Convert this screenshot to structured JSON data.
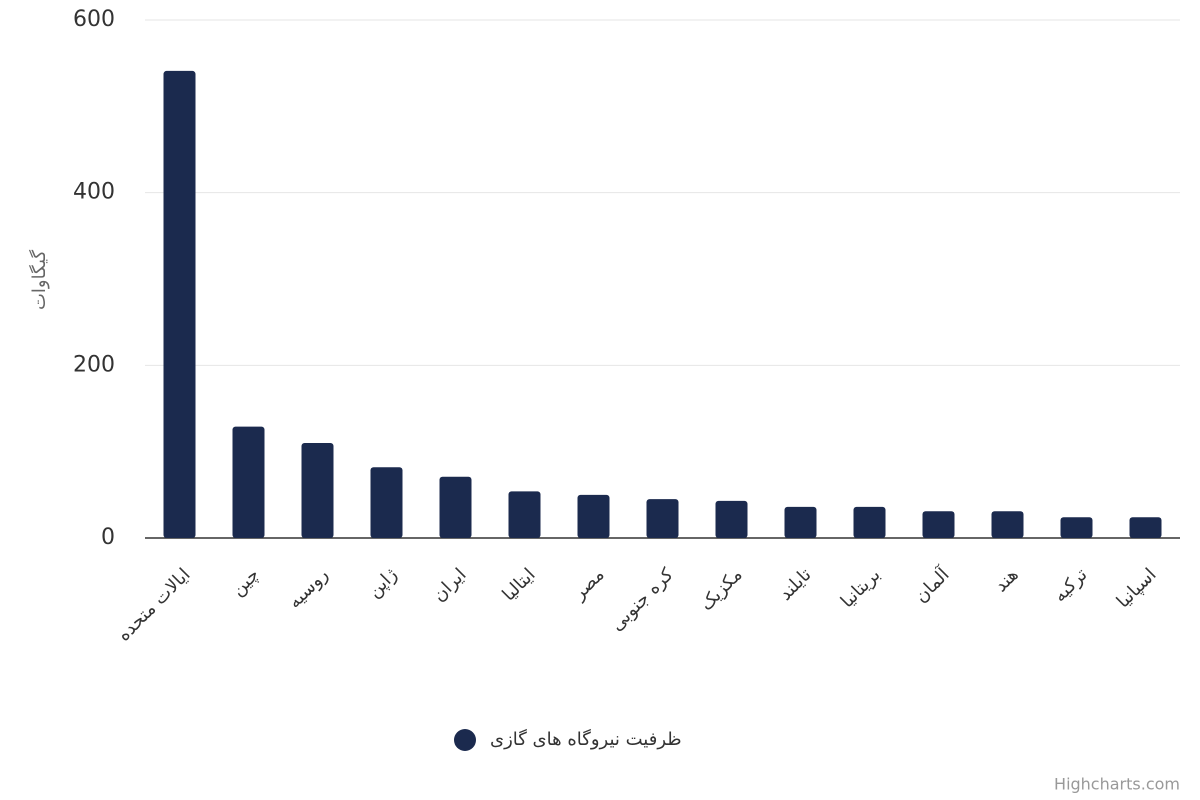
{
  "chart_data": {
    "type": "bar",
    "y_axis_title": "گیگاوات",
    "categories": [
      "ایالات متحده",
      "چین",
      "روسیه",
      "ژاپن",
      "ایران",
      "ایتالیا",
      "مصر",
      "کره جنوبی",
      "مکزیک",
      "تایلند",
      "بریتانیا",
      "آلمان",
      "هند",
      "ترکیه",
      "اسپانیا"
    ],
    "series": [
      {
        "name": "ظرفیت نیروگاه های گازی",
        "color": "#1b2a4e",
        "values": [
          541,
          129,
          110,
          82,
          71,
          54,
          50,
          45,
          43,
          36,
          36,
          31,
          31,
          24,
          24
        ]
      }
    ],
    "ylim": [
      0,
      600
    ],
    "yticks": [
      0,
      200,
      400,
      600
    ],
    "grid": true,
    "credits": "Highcharts.com"
  }
}
